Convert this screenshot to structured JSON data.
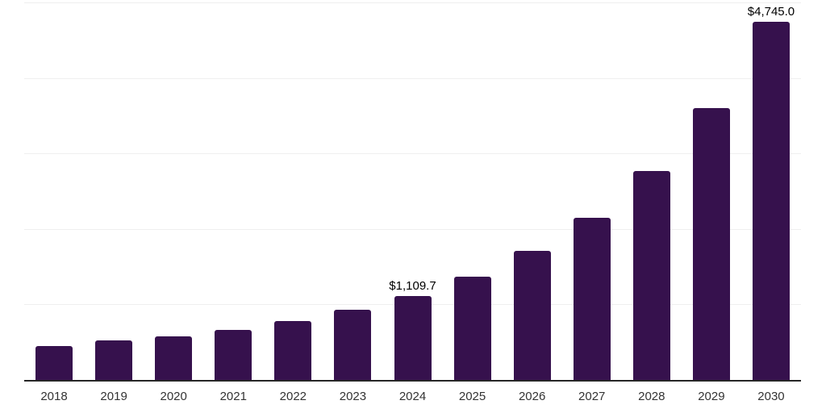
{
  "chart_data": {
    "type": "bar",
    "title": "",
    "xlabel": "",
    "ylabel": "",
    "categories": [
      "2018",
      "2019",
      "2020",
      "2021",
      "2022",
      "2023",
      "2024",
      "2025",
      "2026",
      "2027",
      "2028",
      "2029",
      "2030"
    ],
    "values": [
      445,
      520,
      580,
      660,
      780,
      925,
      1109.7,
      1365,
      1705,
      2145,
      2770,
      3605,
      4745
    ],
    "data_labels": {
      "2024": "$1,109.7",
      "2030": "$4,745.0"
    },
    "ylim": [
      0,
      5000
    ],
    "gridline_values": [
      1000,
      2000,
      3000,
      4000,
      5000
    ],
    "grid": "horizontal",
    "legend": "none",
    "colors": {
      "bar": "#36114D",
      "axis_line": "#262626",
      "gridline": "#EFEFEF",
      "data_label": "#000000",
      "tick_label": "#333333",
      "background": "#FFFFFF"
    }
  }
}
